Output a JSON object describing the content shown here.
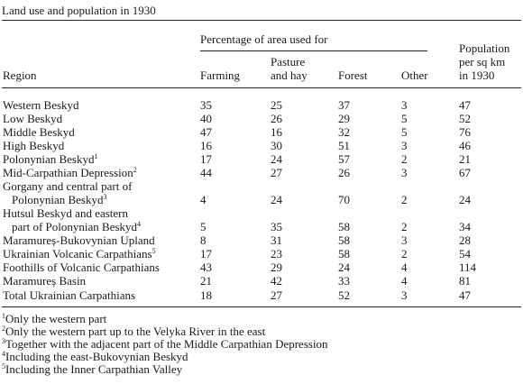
{
  "title": "Land use and population in 1930",
  "headers": {
    "group": "Percentage of area used for",
    "region": "Region",
    "farming": "Farming",
    "pasture_1": "Pasture",
    "pasture_2": "and hay",
    "forest": "Forest",
    "other": "Other",
    "pop_1": "Population",
    "pop_2": "per sq km",
    "pop_3": "in 1930"
  },
  "rows": [
    {
      "region": "Western Beskyd",
      "farming": "35",
      "pasture": "25",
      "forest": "37",
      "other": "3",
      "population": "47"
    },
    {
      "region": "Low Beskyd",
      "farming": "40",
      "pasture": "26",
      "forest": "29",
      "other": "5",
      "population": "52"
    },
    {
      "region": "Middle Beskyd",
      "farming": "47",
      "pasture": "16",
      "forest": "32",
      "other": "5",
      "population": "76"
    },
    {
      "region": "High Beskyd",
      "farming": "16",
      "pasture": "30",
      "forest": "51",
      "other": "3",
      "population": "46"
    },
    {
      "region": "Polonynian Beskyd",
      "note": "1",
      "farming": "17",
      "pasture": "24",
      "forest": "57",
      "other": "2",
      "population": "21"
    },
    {
      "region": "Mid-Carpathian Depression",
      "note": "2",
      "farming": "44",
      "pasture": "27",
      "forest": "26",
      "other": "3",
      "population": "67"
    },
    {
      "region": "Gorgany and central part of",
      "region2": "Polonynian Beskyd",
      "note": "3",
      "farming": "4",
      "pasture": "24",
      "forest": "70",
      "other": "2",
      "population": "24"
    },
    {
      "region": "Hutsul Beskyd and eastern",
      "region2": "part of Polonynian Beskyd",
      "note": "4",
      "farming": "5",
      "pasture": "35",
      "forest": "58",
      "other": "2",
      "population": "34"
    },
    {
      "region": "Maramureș-Bukovynian Upland",
      "farming": "8",
      "pasture": "31",
      "forest": "58",
      "other": "3",
      "population": "28"
    },
    {
      "region": "Ukrainian Volcanic Carpathians",
      "note": "5",
      "farming": "17",
      "pasture": "23",
      "forest": "58",
      "other": "2",
      "population": "54"
    },
    {
      "region": "Foothills of Volcanic Carpathians",
      "farming": "43",
      "pasture": "29",
      "forest": "24",
      "other": "4",
      "population": "114"
    },
    {
      "region": "Maramureș Basin",
      "farming": "21",
      "pasture": "42",
      "forest": "33",
      "other": "4",
      "population": "81"
    }
  ],
  "total": {
    "region": "Total Ukrainian Carpathians",
    "farming": "18",
    "pasture": "27",
    "forest": "52",
    "other": "3",
    "population": "47"
  },
  "footnotes": [
    {
      "mark": "1",
      "text": "Only the western part"
    },
    {
      "mark": "2",
      "text": "Only the western part up to the Velyka River in the east"
    },
    {
      "mark": "3",
      "text": "Together with the adjacent part of the Middle Carpathian Depression"
    },
    {
      "mark": "4",
      "text": "Including the east-Bukovynian Beskyd"
    },
    {
      "mark": "5",
      "text": "Including the Inner Carpathian Valley"
    }
  ]
}
